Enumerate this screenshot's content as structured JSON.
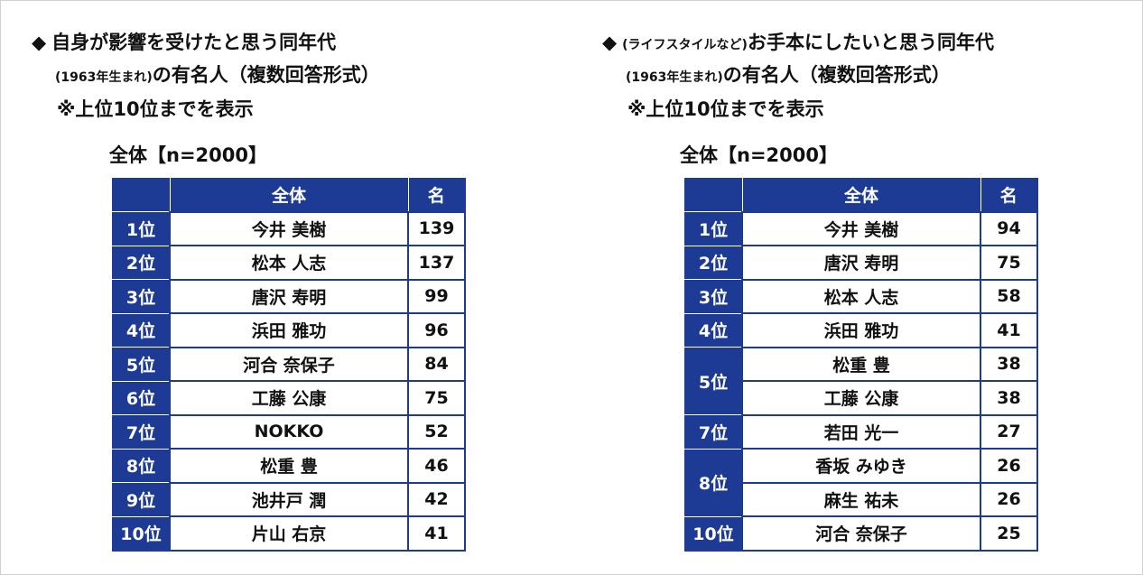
{
  "panels": [
    {
      "bullet": "◆",
      "title": "自身が影響を受けたと思う同年代",
      "title_sub_prefix": "(1963年生まれ)",
      "title_sub": "の有名人（複数回答形式）",
      "note": "※上位10位までを表示",
      "sample": "全体【n=2000】",
      "table": {
        "header": [
          "全体",
          "名"
        ],
        "groups": [
          {
            "rank": "1位",
            "entries": [
              {
                "name": "今井 美樹",
                "count": 139
              }
            ]
          },
          {
            "rank": "2位",
            "entries": [
              {
                "name": "松本 人志",
                "count": 137
              }
            ]
          },
          {
            "rank": "3位",
            "entries": [
              {
                "name": "唐沢 寿明",
                "count": 99
              }
            ]
          },
          {
            "rank": "4位",
            "entries": [
              {
                "name": "浜田 雅功",
                "count": 96
              }
            ]
          },
          {
            "rank": "5位",
            "entries": [
              {
                "name": "河合 奈保子",
                "count": 84
              }
            ]
          },
          {
            "rank": "6位",
            "entries": [
              {
                "name": "工藤 公康",
                "count": 75
              }
            ]
          },
          {
            "rank": "7位",
            "entries": [
              {
                "name": "NOKKO",
                "count": 52
              }
            ]
          },
          {
            "rank": "8位",
            "entries": [
              {
                "name": "松重 豊",
                "count": 46
              }
            ]
          },
          {
            "rank": "9位",
            "entries": [
              {
                "name": "池井戸 潤",
                "count": 42
              }
            ]
          },
          {
            "rank": "10位",
            "entries": [
              {
                "name": "片山 右京",
                "count": 41
              }
            ]
          }
        ]
      }
    },
    {
      "bullet": "◆",
      "title_prefix": "(ライフスタイルなど)",
      "title": "お手本にしたいと思う同年代",
      "title_sub_prefix": "(1963年生まれ)",
      "title_sub": "の有名人（複数回答形式）",
      "note": "※上位10位までを表示",
      "sample": "全体【n=2000】",
      "table": {
        "header": [
          "全体",
          "名"
        ],
        "groups": [
          {
            "rank": "1位",
            "entries": [
              {
                "name": "今井 美樹",
                "count": 94
              }
            ]
          },
          {
            "rank": "2位",
            "entries": [
              {
                "name": "唐沢 寿明",
                "count": 75
              }
            ]
          },
          {
            "rank": "3位",
            "entries": [
              {
                "name": "松本 人志",
                "count": 58
              }
            ]
          },
          {
            "rank": "4位",
            "entries": [
              {
                "name": "浜田 雅功",
                "count": 41
              }
            ]
          },
          {
            "rank": "5位",
            "entries": [
              {
                "name": "松重 豊",
                "count": 38
              },
              {
                "name": "工藤 公康",
                "count": 38
              }
            ]
          },
          {
            "rank": "7位",
            "entries": [
              {
                "name": "若田 光一",
                "count": 27
              }
            ]
          },
          {
            "rank": "8位",
            "entries": [
              {
                "name": "香坂 みゆき",
                "count": 26
              },
              {
                "name": "麻生 祐未",
                "count": 26
              }
            ]
          },
          {
            "rank": "10位",
            "entries": [
              {
                "name": "河合 奈保子",
                "count": 25
              }
            ]
          }
        ]
      }
    }
  ]
}
